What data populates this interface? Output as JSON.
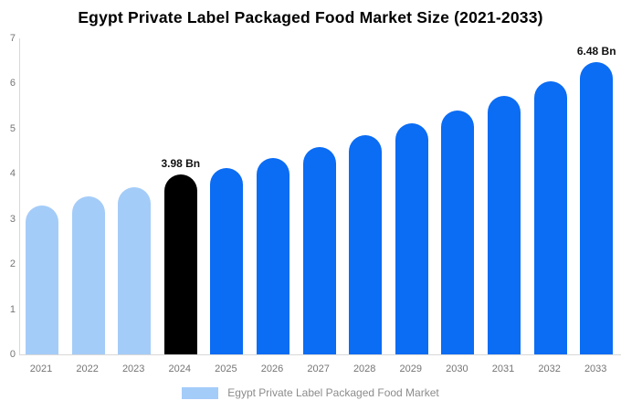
{
  "title": "Egypt Private Label Packaged Food Market Size (2021-2033)",
  "legend": {
    "label": "Egypt Private Label Packaged Food Market"
  },
  "colors": {
    "historical_bar": "#a4ccf8",
    "base_year_bar": "#000000",
    "forecast_bar": "#0b6cf4",
    "axis_line": "#d8d8d8",
    "axis_text": "#757575",
    "point_label_text": "#111111",
    "legend_text": "#8c8c8c",
    "background": "#ffffff"
  },
  "chart_data": {
    "type": "bar",
    "title": "Egypt Private Label Packaged Food Market Size (2021-2033)",
    "xlabel": "",
    "ylabel": "",
    "ylim": [
      0,
      7
    ],
    "yticks": [
      0,
      1,
      2,
      3,
      4,
      5,
      6,
      7
    ],
    "grid": false,
    "legend_position": "bottom",
    "unit": "Bn",
    "categories": [
      "2021",
      "2022",
      "2023",
      "2024",
      "2025",
      "2026",
      "2027",
      "2028",
      "2029",
      "2030",
      "2031",
      "2032",
      "2033"
    ],
    "values": [
      3.3,
      3.5,
      3.7,
      3.98,
      4.12,
      4.35,
      4.6,
      4.85,
      5.12,
      5.4,
      5.73,
      6.05,
      6.48
    ],
    "bars": [
      {
        "year": "2021",
        "value": 3.3,
        "role": "historical",
        "label": null
      },
      {
        "year": "2022",
        "value": 3.5,
        "role": "historical",
        "label": null
      },
      {
        "year": "2023",
        "value": 3.7,
        "role": "historical",
        "label": null
      },
      {
        "year": "2024",
        "value": 3.98,
        "role": "base_year",
        "label": "3.98 Bn"
      },
      {
        "year": "2025",
        "value": 4.12,
        "role": "forecast",
        "label": null
      },
      {
        "year": "2026",
        "value": 4.35,
        "role": "forecast",
        "label": null
      },
      {
        "year": "2027",
        "value": 4.6,
        "role": "forecast",
        "label": null
      },
      {
        "year": "2028",
        "value": 4.85,
        "role": "forecast",
        "label": null
      },
      {
        "year": "2029",
        "value": 5.12,
        "role": "forecast",
        "label": null
      },
      {
        "year": "2030",
        "value": 5.4,
        "role": "forecast",
        "label": null
      },
      {
        "year": "2031",
        "value": 5.73,
        "role": "forecast",
        "label": null
      },
      {
        "year": "2032",
        "value": 6.05,
        "role": "forecast",
        "label": null
      },
      {
        "year": "2033",
        "value": 6.48,
        "role": "forecast",
        "label": "6.48 Bn"
      }
    ]
  }
}
